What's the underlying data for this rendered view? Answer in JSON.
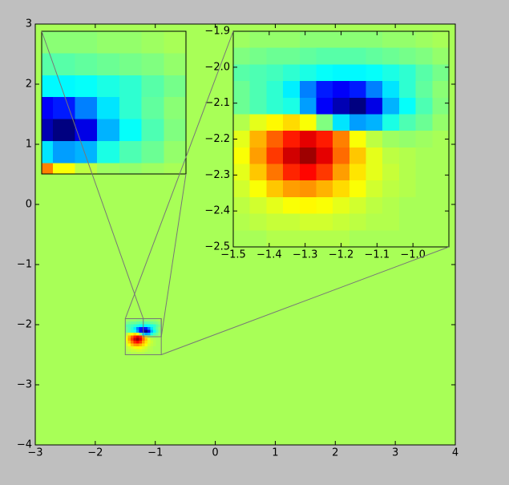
{
  "chart_data": [
    {
      "type": "heatmap",
      "colormap": "jet",
      "zlim": [
        0,
        1
      ],
      "xlim": [
        -3,
        4
      ],
      "ylim": [
        -4,
        3
      ],
      "xticks": [
        {
          "value": -3,
          "label": "−3"
        },
        {
          "value": -2,
          "label": "−2"
        },
        {
          "value": -1,
          "label": "−1"
        },
        0,
        1,
        2,
        3,
        4
      ],
      "yticks": [
        {
          "value": -4,
          "label": "−4"
        },
        {
          "value": -3,
          "label": "−3"
        },
        {
          "value": -2,
          "label": "−2"
        },
        {
          "value": -1,
          "label": "−1"
        },
        0,
        1,
        2,
        3
      ],
      "z_background": 0.54,
      "extent": [
        -1.5,
        -0.9,
        -2.5,
        -1.9
      ],
      "z": [
        [
          0.53,
          0.52,
          0.52,
          0.52,
          0.51,
          0.51,
          0.51,
          0.51,
          0.51,
          0.52,
          0.52,
          0.53,
          0.54
        ],
        [
          0.5,
          0.49,
          0.48,
          0.48,
          0.47,
          0.46,
          0.46,
          0.46,
          0.47,
          0.48,
          0.49,
          0.5,
          0.52
        ],
        [
          0.46,
          0.45,
          0.44,
          0.42,
          0.4,
          0.38,
          0.37,
          0.37,
          0.38,
          0.4,
          0.42,
          0.46,
          0.49
        ],
        [
          0.48,
          0.45,
          0.42,
          0.36,
          0.25,
          0.15,
          0.12,
          0.15,
          0.25,
          0.35,
          0.42,
          0.47,
          0.51
        ],
        [
          0.48,
          0.45,
          0.42,
          0.4,
          0.28,
          0.12,
          0.05,
          0.0,
          0.1,
          0.3,
          0.38,
          0.45,
          0.5
        ],
        [
          0.55,
          0.6,
          0.63,
          0.66,
          0.62,
          0.5,
          0.35,
          0.28,
          0.3,
          0.4,
          0.45,
          0.48,
          0.52
        ],
        [
          0.6,
          0.7,
          0.78,
          0.85,
          0.9,
          0.85,
          0.75,
          0.62,
          0.56,
          0.53,
          0.52,
          0.53,
          0.54
        ],
        [
          0.62,
          0.72,
          0.82,
          0.92,
          0.97,
          0.9,
          0.77,
          0.68,
          0.6,
          0.56,
          0.55,
          0.54,
          0.54
        ],
        [
          0.6,
          0.68,
          0.76,
          0.84,
          0.87,
          0.82,
          0.72,
          0.65,
          0.6,
          0.57,
          0.55,
          0.54,
          0.54
        ],
        [
          0.58,
          0.62,
          0.68,
          0.72,
          0.73,
          0.7,
          0.66,
          0.62,
          0.58,
          0.56,
          0.55,
          0.54,
          0.54
        ],
        [
          0.56,
          0.58,
          0.6,
          0.62,
          0.63,
          0.62,
          0.6,
          0.58,
          0.56,
          0.55,
          0.54,
          0.54,
          0.54
        ],
        [
          0.55,
          0.56,
          0.57,
          0.57,
          0.58,
          0.58,
          0.57,
          0.56,
          0.55,
          0.55,
          0.54,
          0.54,
          0.54
        ],
        [
          0.54,
          0.54,
          0.55,
          0.55,
          0.55,
          0.55,
          0.55,
          0.54,
          0.54,
          0.54,
          0.54,
          0.54,
          0.54
        ]
      ]
    },
    {
      "type": "zoom-inset",
      "xlim": [
        -1.2,
        -0.9
      ],
      "ylim": [
        -2.2,
        -1.9
      ]
    },
    {
      "type": "zoom-inset",
      "xlim": [
        -1.5,
        -0.9
      ],
      "ylim": [
        -2.5,
        -1.9
      ],
      "xticks": [
        {
          "value": -1.5,
          "label": "−1.5"
        },
        {
          "value": -1.4,
          "label": "−1.4"
        },
        {
          "value": -1.3,
          "label": "−1.3"
        },
        {
          "value": -1.2,
          "label": "−1.2"
        },
        {
          "value": -1.1,
          "label": "−1.1"
        },
        {
          "value": -1.0,
          "label": "−1.0"
        }
      ],
      "yticks": [
        {
          "value": -2.5,
          "label": "−2.5"
        },
        {
          "value": -2.4,
          "label": "−2.4"
        },
        {
          "value": -2.3,
          "label": "−2.3"
        },
        {
          "value": -2.2,
          "label": "−2.2"
        },
        {
          "value": -2.1,
          "label": "−2.1"
        },
        {
          "value": -2.0,
          "label": "−2.0"
        },
        {
          "value": -1.9,
          "label": "−1.9"
        }
      ]
    }
  ]
}
